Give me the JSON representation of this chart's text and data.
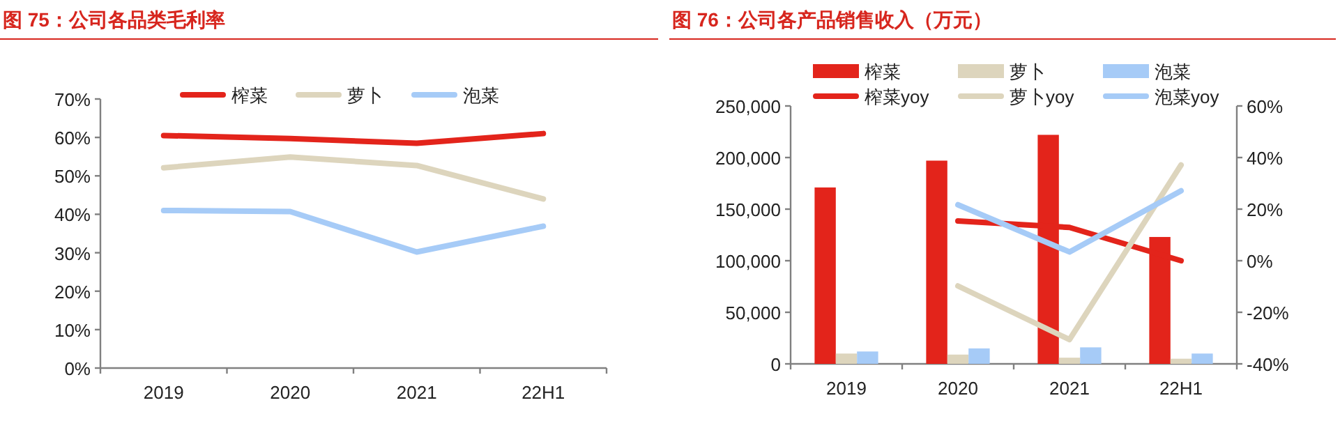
{
  "chart_data": [
    {
      "type": "line",
      "title": "图 75：公司各品类毛利率",
      "categories": [
        "2019",
        "2020",
        "2021",
        "22H1"
      ],
      "ylim": [
        0,
        70
      ],
      "yticks": [
        {
          "value": 0,
          "label": "0%"
        },
        {
          "value": 10,
          "label": "10%"
        },
        {
          "value": 20,
          "label": "20%"
        },
        {
          "value": 30,
          "label": "30%"
        },
        {
          "value": 40,
          "label": "40%"
        },
        {
          "value": 50,
          "label": "50%"
        },
        {
          "value": 60,
          "label": "60%"
        },
        {
          "value": 70,
          "label": "70%"
        }
      ],
      "legend": "top",
      "series": [
        {
          "name": "榨菜",
          "color": "#e3241b",
          "values": [
            60.5,
            59.7,
            58.5,
            61
          ]
        },
        {
          "name": "萝卜",
          "color": "#ddd5bd",
          "values": [
            52.1,
            54.9,
            52.7,
            44
          ]
        },
        {
          "name": "泡菜",
          "color": "#a6cbf7",
          "values": [
            41,
            40.7,
            30.2,
            36.9
          ]
        }
      ]
    },
    {
      "type": "bar",
      "title": "图 76：公司各产品销售收入（万元）",
      "categories": [
        "2019",
        "2020",
        "2021",
        "22H1"
      ],
      "ylim": [
        0,
        250000
      ],
      "yticks": [
        {
          "value": 0,
          "label": "0"
        },
        {
          "value": 50000,
          "label": "50,000"
        },
        {
          "value": 100000,
          "label": "100,000"
        },
        {
          "value": 150000,
          "label": "150,000"
        },
        {
          "value": 200000,
          "label": "200,000"
        },
        {
          "value": 250000,
          "label": "250,000"
        }
      ],
      "y2lim": [
        -40,
        60
      ],
      "y2ticks": [
        {
          "value": -40,
          "label": "-40%"
        },
        {
          "value": -20,
          "label": "-20%"
        },
        {
          "value": 0,
          "label": "0%"
        },
        {
          "value": 20,
          "label": "20%"
        },
        {
          "value": 40,
          "label": "40%"
        },
        {
          "value": 60,
          "label": "60%"
        }
      ],
      "legend": "top",
      "series": [
        {
          "name": "榨菜",
          "color": "#e3241b",
          "values": [
            171000,
            197000,
            222000,
            123000
          ]
        },
        {
          "name": "萝卜",
          "color": "#ddd5bd",
          "values": [
            10000,
            9000,
            6000,
            5000
          ]
        },
        {
          "name": "泡菜",
          "color": "#a6cbf7",
          "values": [
            12000,
            15000,
            16000,
            10000
          ]
        },
        {
          "name": "榨菜yoy",
          "type": "line",
          "axis": "y2",
          "color": "#e3241b",
          "values": [
            null,
            15.4,
            12.9,
            0
          ]
        },
        {
          "name": "萝卜yoy",
          "type": "line",
          "axis": "y2",
          "color": "#ddd5bd",
          "values": [
            null,
            -9.8,
            -30.6,
            37.1
          ]
        },
        {
          "name": "泡菜yoy",
          "type": "line",
          "axis": "y2",
          "color": "#a6cbf7",
          "values": [
            null,
            21.7,
            3.4,
            27.1
          ]
        }
      ]
    }
  ]
}
